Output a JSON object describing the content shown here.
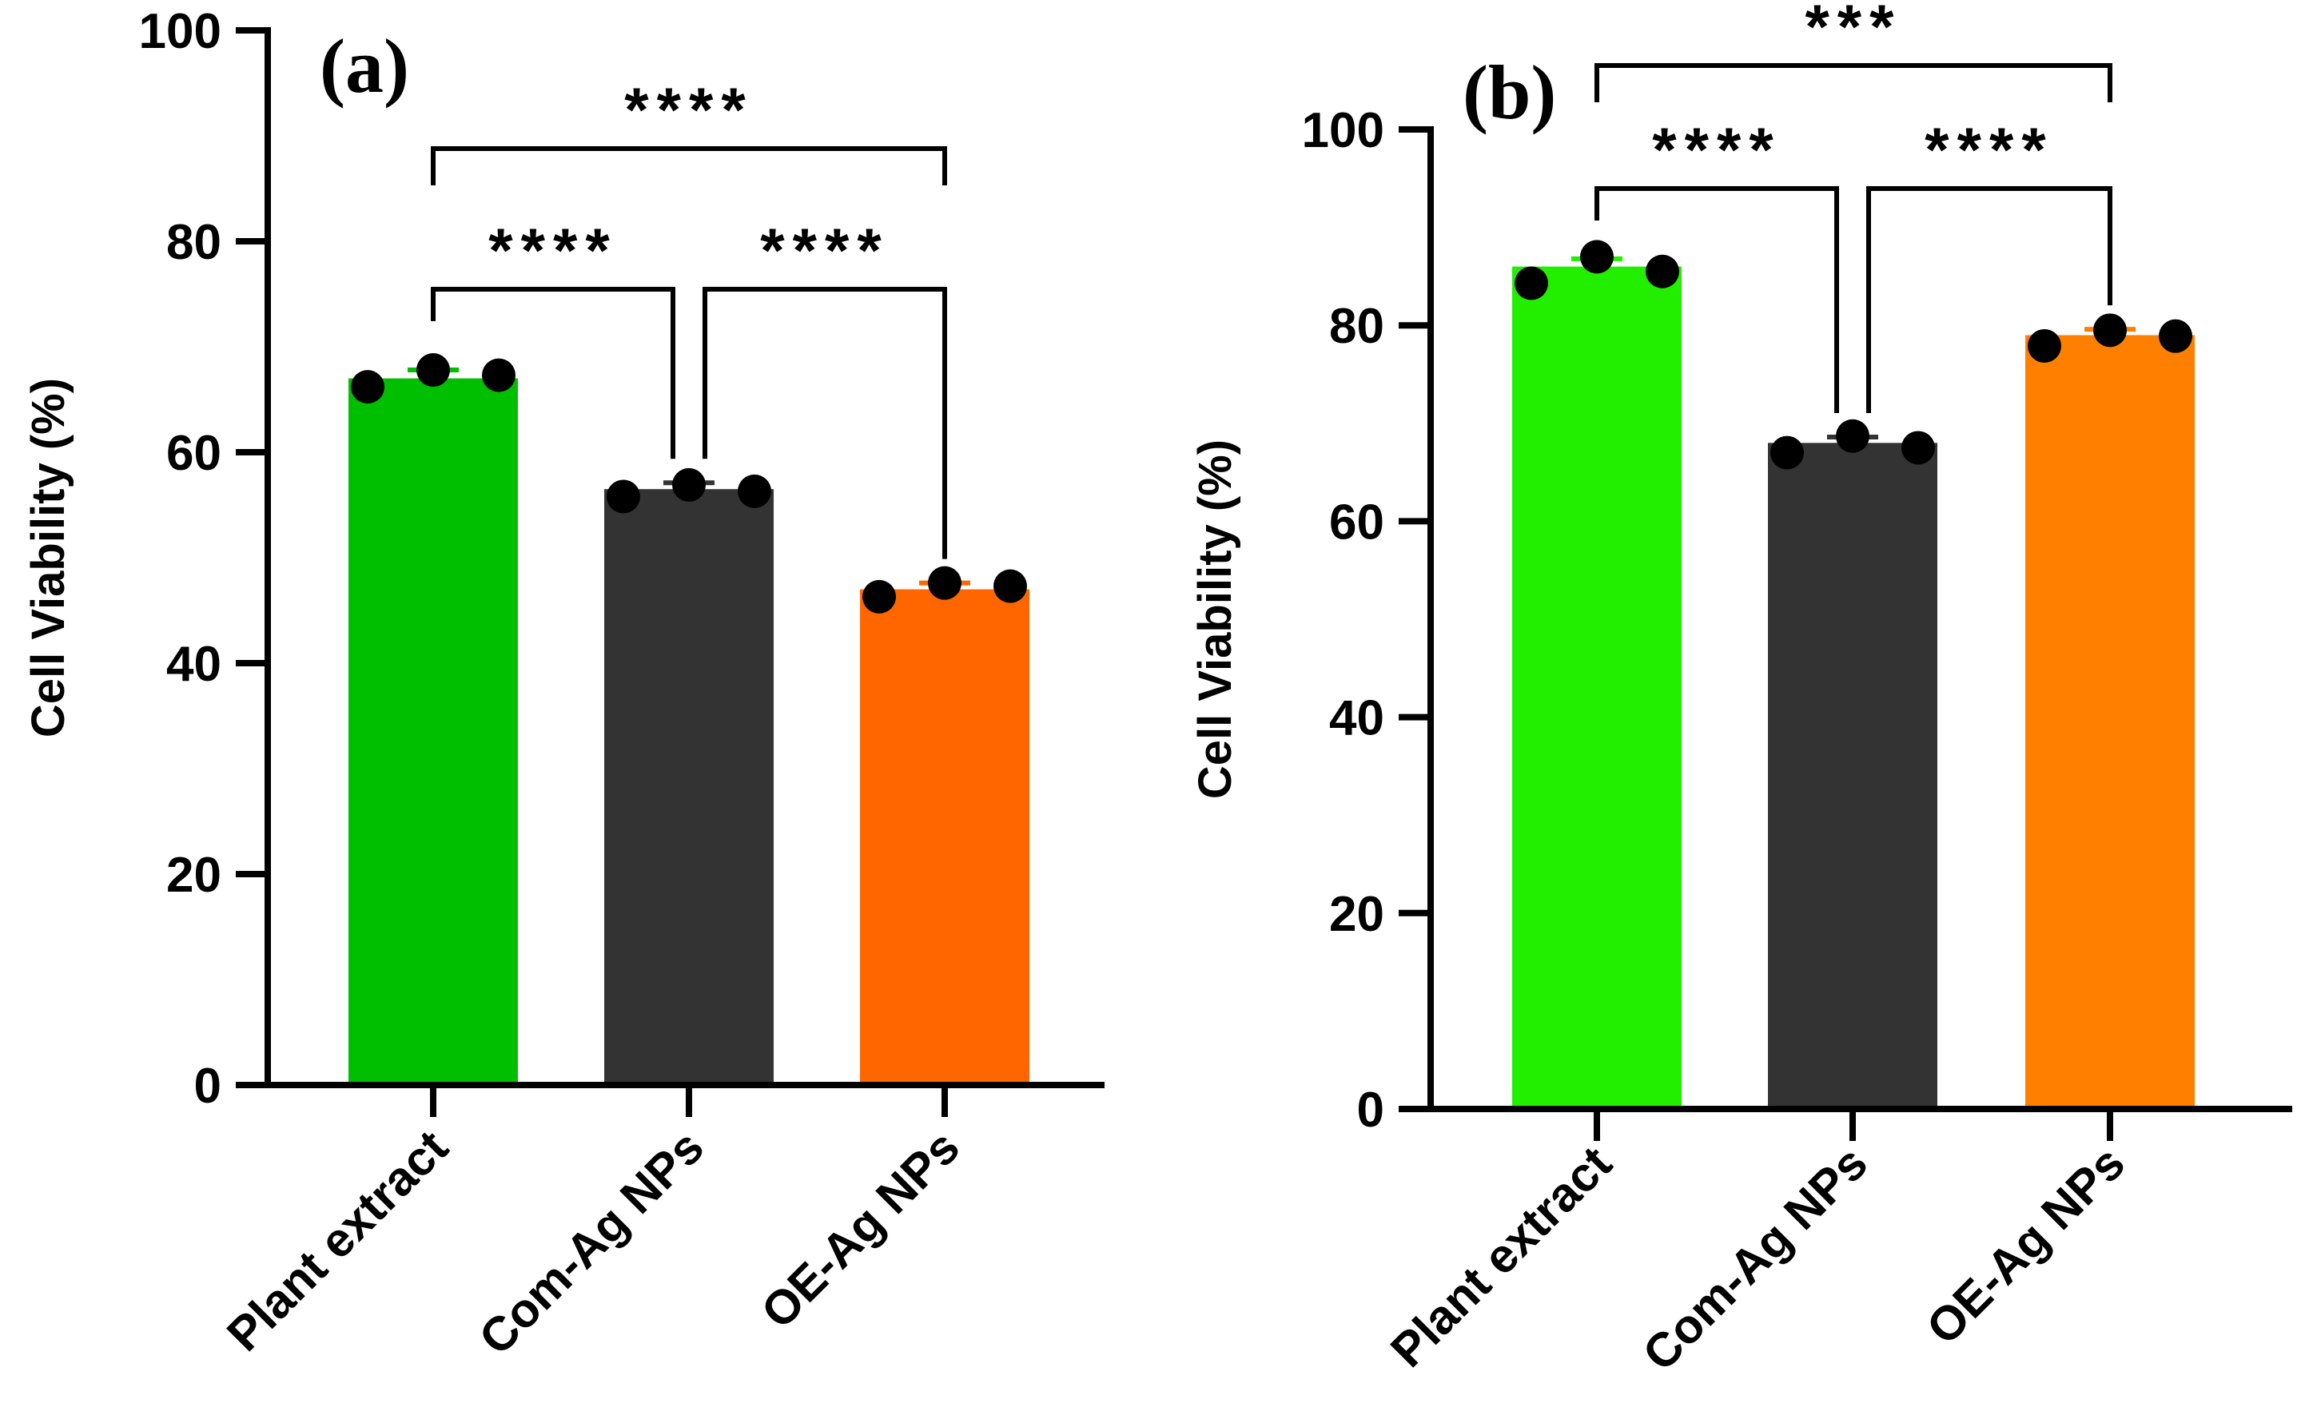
{
  "chart_data": [
    {
      "type": "bar",
      "panel_label": "(a)",
      "categories": [
        "Plant extract",
        "Com-Ag NPs",
        "OE-Ag NPs"
      ],
      "values": [
        67,
        56.5,
        47
      ],
      "errors": [
        0.8,
        0.6,
        0.6
      ],
      "points": [
        [
          66.2,
          67.8,
          67.3
        ],
        [
          55.8,
          56.9,
          56.3
        ],
        [
          46.3,
          47.6,
          47.3
        ]
      ],
      "colors": [
        "#00bf00",
        "#333333",
        "#ff6600"
      ],
      "ylabel": "Cell Viability (%)",
      "ylim": [
        0,
        100
      ],
      "yticks": [
        0,
        20,
        40,
        60,
        80,
        100
      ],
      "comparisons": [
        {
          "from": 0,
          "to": 1,
          "label": "****"
        },
        {
          "from": 1,
          "to": 2,
          "label": "****"
        },
        {
          "from": 0,
          "to": 2,
          "label": "****"
        }
      ]
    },
    {
      "type": "bar",
      "panel_label": "(b)",
      "categories": [
        "Plant extract",
        "Com-Ag NPs",
        "OE-Ag NPs"
      ],
      "values": [
        86,
        68,
        79
      ],
      "errors": [
        0.8,
        0.6,
        0.6
      ],
      "points": [
        [
          84.3,
          87.0,
          85.5
        ],
        [
          67.0,
          68.7,
          67.5
        ],
        [
          77.9,
          79.5,
          78.9
        ]
      ],
      "colors": [
        "#22ee00",
        "#333333",
        "#ff8000"
      ],
      "ylabel": "Cell Viability (%)",
      "ylim": [
        0,
        100
      ],
      "yticks": [
        0,
        20,
        40,
        60,
        80,
        100
      ],
      "comparisons": [
        {
          "from": 0,
          "to": 1,
          "label": "****"
        },
        {
          "from": 1,
          "to": 2,
          "label": "****"
        },
        {
          "from": 0,
          "to": 2,
          "label": "***"
        }
      ]
    }
  ]
}
